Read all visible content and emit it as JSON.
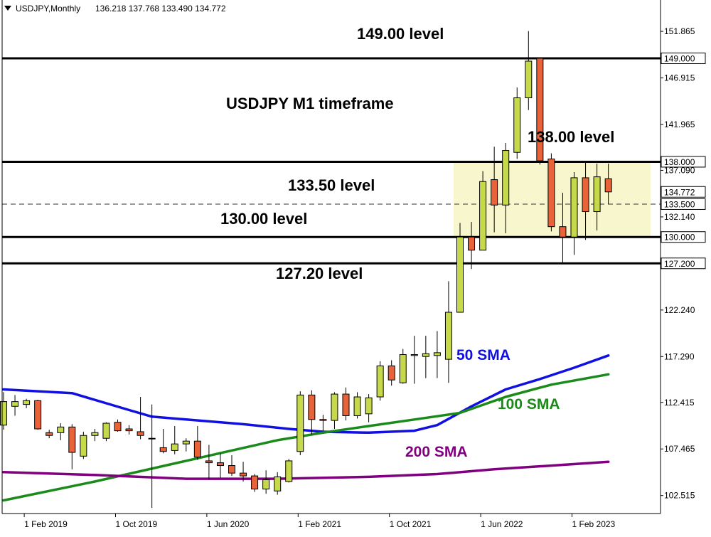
{
  "header": {
    "symbol_timeframe": "USDJPY,Monthly",
    "ohlc": "136.218 137.768 133.490 134.772"
  },
  "colors": {
    "bull": "#c5d94a",
    "bear": "#e8633a",
    "sma50": "#1010e0",
    "sma100": "#1a8a1a",
    "sma200": "#800080",
    "zone": "#f8f6cc",
    "level_line": "#000000"
  },
  "chart_data": {
    "type": "candlestick",
    "title": "USDJPY M1 timeframe",
    "y_axis_ticks": [
      "151.865",
      "146.915",
      "141.965",
      "137.090",
      "132.140",
      "122.240",
      "117.290",
      "112.415",
      "107.465",
      "102.515"
    ],
    "x_axis_ticks": [
      "1 Feb 2019",
      "1 Oct 2019",
      "1 Jun 2020",
      "1 Feb 2021",
      "1 Oct 2021",
      "1 Jun 2022",
      "1 Feb 2023"
    ],
    "ylim": [
      100.6,
      155.2
    ],
    "levels": [
      {
        "value": 149.0,
        "label": "149.00 level",
        "price_tag": "149.000"
      },
      {
        "value": 138.0,
        "label": "138.00 level",
        "price_tag": "138.000"
      },
      {
        "value": 133.5,
        "label": "133.50 level",
        "price_tag": "133.500",
        "dashed": true
      },
      {
        "value": 130.0,
        "label": "130.00 level",
        "price_tag": "130.000"
      },
      {
        "value": 127.2,
        "label": "127.20 level",
        "price_tag": "127.200"
      }
    ],
    "current_price_tag": "134.772",
    "zone": {
      "from": 130.0,
      "to": 138.0,
      "start_date": "2022-04"
    },
    "candles": [
      {
        "date": "2018-12",
        "open": 110.0,
        "high": 113.5,
        "low": 109.5,
        "close": 112.5
      },
      {
        "date": "2019-01",
        "open": 112.0,
        "high": 113.2,
        "low": 111.0,
        "close": 112.5
      },
      {
        "date": "2019-02",
        "open": 112.2,
        "high": 112.8,
        "low": 111.8,
        "close": 112.6
      },
      {
        "date": "2019-03",
        "open": 112.6,
        "high": 112.7,
        "low": 109.5,
        "close": 109.6
      },
      {
        "date": "2019-04",
        "open": 109.2,
        "high": 109.5,
        "low": 108.6,
        "close": 108.9
      },
      {
        "date": "2019-05",
        "open": 109.2,
        "high": 110.2,
        "low": 108.4,
        "close": 109.8
      },
      {
        "date": "2019-06",
        "open": 109.8,
        "high": 110.1,
        "low": 105.3,
        "close": 107.1
      },
      {
        "date": "2019-07",
        "open": 106.7,
        "high": 109.3,
        "low": 106.4,
        "close": 108.9
      },
      {
        "date": "2019-08",
        "open": 108.9,
        "high": 109.6,
        "low": 108.3,
        "close": 109.2
      },
      {
        "date": "2019-09",
        "open": 108.6,
        "high": 110.3,
        "low": 108.3,
        "close": 110.2
      },
      {
        "date": "2019-10",
        "open": 110.3,
        "high": 110.6,
        "low": 109.3,
        "close": 109.4
      },
      {
        "date": "2019-11",
        "open": 109.6,
        "high": 110.0,
        "low": 109.0,
        "close": 109.4
      },
      {
        "date": "2019-12",
        "open": 109.3,
        "high": 113.0,
        "low": 108.5,
        "close": 108.9
      },
      {
        "date": "2020-01",
        "open": 108.6,
        "high": 112.2,
        "low": 101.2,
        "close": 108.6
      },
      {
        "date": "2020-02",
        "open": 107.6,
        "high": 109.6,
        "low": 107.0,
        "close": 107.2
      },
      {
        "date": "2020-03",
        "open": 107.3,
        "high": 109.9,
        "low": 106.9,
        "close": 108.0
      },
      {
        "date": "2020-04",
        "open": 108.0,
        "high": 108.6,
        "low": 107.2,
        "close": 108.3
      },
      {
        "date": "2020-05",
        "open": 108.3,
        "high": 109.9,
        "low": 106.3,
        "close": 106.6
      },
      {
        "date": "2020-06",
        "open": 106.2,
        "high": 107.9,
        "low": 104.2,
        "close": 106.0
      },
      {
        "date": "2020-07",
        "open": 106.0,
        "high": 107.0,
        "low": 104.4,
        "close": 105.7
      },
      {
        "date": "2020-08",
        "open": 105.7,
        "high": 106.8,
        "low": 104.6,
        "close": 104.9
      },
      {
        "date": "2020-09",
        "open": 104.9,
        "high": 106.1,
        "low": 104.0,
        "close": 104.6
      },
      {
        "date": "2020-10",
        "open": 104.6,
        "high": 104.8,
        "low": 102.9,
        "close": 103.2
      },
      {
        "date": "2020-11",
        "open": 103.2,
        "high": 105.2,
        "low": 102.7,
        "close": 104.2
      },
      {
        "date": "2020-12",
        "open": 103.0,
        "high": 105.0,
        "low": 102.6,
        "close": 104.5
      },
      {
        "date": "2021-01",
        "open": 104.0,
        "high": 106.4,
        "low": 103.9,
        "close": 106.2
      },
      {
        "date": "2021-02",
        "open": 107.2,
        "high": 113.6,
        "low": 106.8,
        "close": 113.2
      },
      {
        "date": "2021-03",
        "open": 113.2,
        "high": 113.7,
        "low": 109.0,
        "close": 110.6
      },
      {
        "date": "2021-04",
        "open": 110.6,
        "high": 111.1,
        "low": 109.4,
        "close": 110.5
      },
      {
        "date": "2021-05",
        "open": 110.5,
        "high": 113.5,
        "low": 109.6,
        "close": 113.3
      },
      {
        "date": "2021-06",
        "open": 113.3,
        "high": 114.0,
        "low": 110.5,
        "close": 111.0
      },
      {
        "date": "2021-07",
        "open": 111.0,
        "high": 113.5,
        "low": 110.7,
        "close": 113.0
      },
      {
        "date": "2021-08",
        "open": 111.2,
        "high": 113.3,
        "low": 110.3,
        "close": 112.9
      },
      {
        "date": "2021-09",
        "open": 113.0,
        "high": 116.8,
        "low": 112.6,
        "close": 116.3
      },
      {
        "date": "2021-10",
        "open": 116.3,
        "high": 116.9,
        "low": 114.2,
        "close": 114.8
      },
      {
        "date": "2021-11",
        "open": 114.5,
        "high": 118.1,
        "low": 114.4,
        "close": 117.5
      },
      {
        "date": "2021-12",
        "open": 117.4,
        "high": 119.5,
        "low": 114.4,
        "close": 117.5
      },
      {
        "date": "2022-01",
        "open": 117.3,
        "high": 119.5,
        "low": 115.0,
        "close": 117.6
      },
      {
        "date": "2022-02",
        "open": 117.4,
        "high": 120.0,
        "low": 115.0,
        "close": 117.7
      },
      {
        "date": "2022-03",
        "open": 117.0,
        "high": 125.3,
        "low": 114.5,
        "close": 122.0
      },
      {
        "date": "2022-04",
        "open": 122.0,
        "high": 131.5,
        "low": 122.0,
        "close": 130.0
      },
      {
        "date": "2022-05",
        "open": 130.0,
        "high": 131.6,
        "low": 126.6,
        "close": 128.6
      },
      {
        "date": "2022-06",
        "open": 128.6,
        "high": 137.0,
        "low": 128.6,
        "close": 135.9
      },
      {
        "date": "2022-07",
        "open": 136.1,
        "high": 139.6,
        "low": 130.5,
        "close": 133.4
      },
      {
        "date": "2022-08",
        "open": 133.4,
        "high": 140.0,
        "low": 130.4,
        "close": 139.2
      },
      {
        "date": "2022-09",
        "open": 139.0,
        "high": 145.9,
        "low": 138.3,
        "close": 144.8
      },
      {
        "date": "2022-10",
        "open": 144.8,
        "high": 151.9,
        "low": 143.5,
        "close": 148.7
      },
      {
        "date": "2022-11",
        "open": 149.0,
        "high": 149.0,
        "low": 137.7,
        "close": 138.1
      },
      {
        "date": "2022-12",
        "open": 138.3,
        "high": 138.9,
        "low": 130.6,
        "close": 131.1
      },
      {
        "date": "2023-01",
        "open": 131.1,
        "high": 134.7,
        "low": 127.2,
        "close": 130.0
      },
      {
        "date": "2023-02",
        "open": 130.0,
        "high": 136.9,
        "low": 128.1,
        "close": 136.3
      },
      {
        "date": "2023-03",
        "open": 136.3,
        "high": 137.9,
        "low": 129.7,
        "close": 132.7
      },
      {
        "date": "2023-04",
        "open": 132.7,
        "high": 137.8,
        "low": 130.7,
        "close": 136.4
      },
      {
        "date": "2023-05",
        "open": 136.2,
        "high": 137.8,
        "low": 133.5,
        "close": 134.8
      }
    ],
    "sma": [
      {
        "name": "50 SMA",
        "color": "#1010e0",
        "values": [
          [
            0,
            113.8
          ],
          [
            6,
            113.4
          ],
          [
            11,
            111.6
          ],
          [
            13,
            110.9
          ],
          [
            16,
            110.6
          ],
          [
            21,
            110.1
          ],
          [
            25,
            109.6
          ],
          [
            28,
            109.3
          ],
          [
            32,
            109.2
          ],
          [
            36,
            109.4
          ],
          [
            38,
            110.0
          ],
          [
            41,
            112.0
          ],
          [
            44,
            113.8
          ],
          [
            47,
            114.9
          ],
          [
            50,
            116.1
          ],
          [
            53,
            117.4
          ]
        ]
      },
      {
        "name": "100 SMA",
        "color": "#1a8a1a",
        "values": [
          [
            0,
            102.0
          ],
          [
            8,
            104.0
          ],
          [
            16,
            106.2
          ],
          [
            24,
            108.4
          ],
          [
            28,
            109.2
          ],
          [
            32,
            109.9
          ],
          [
            36,
            110.6
          ],
          [
            40,
            111.3
          ],
          [
            44,
            113.0
          ],
          [
            48,
            114.3
          ],
          [
            53,
            115.4
          ]
        ]
      },
      {
        "name": "200 SMA",
        "color": "#800080",
        "values": [
          [
            0,
            105.0
          ],
          [
            8,
            104.7
          ],
          [
            16,
            104.3
          ],
          [
            24,
            104.3
          ],
          [
            32,
            104.5
          ],
          [
            38,
            104.8
          ],
          [
            43,
            105.3
          ],
          [
            48,
            105.7
          ],
          [
            53,
            106.1
          ]
        ]
      }
    ]
  },
  "annotations": {
    "title": "USDJPY M1 timeframe",
    "level_149": "149.00 level",
    "level_138": "138.00 level",
    "level_1335": "133.50 level",
    "level_130": "130.00 level",
    "level_1272": "127.20 level",
    "sma50": "50 SMA",
    "sma100": "100 SMA",
    "sma200": "200 SMA"
  }
}
